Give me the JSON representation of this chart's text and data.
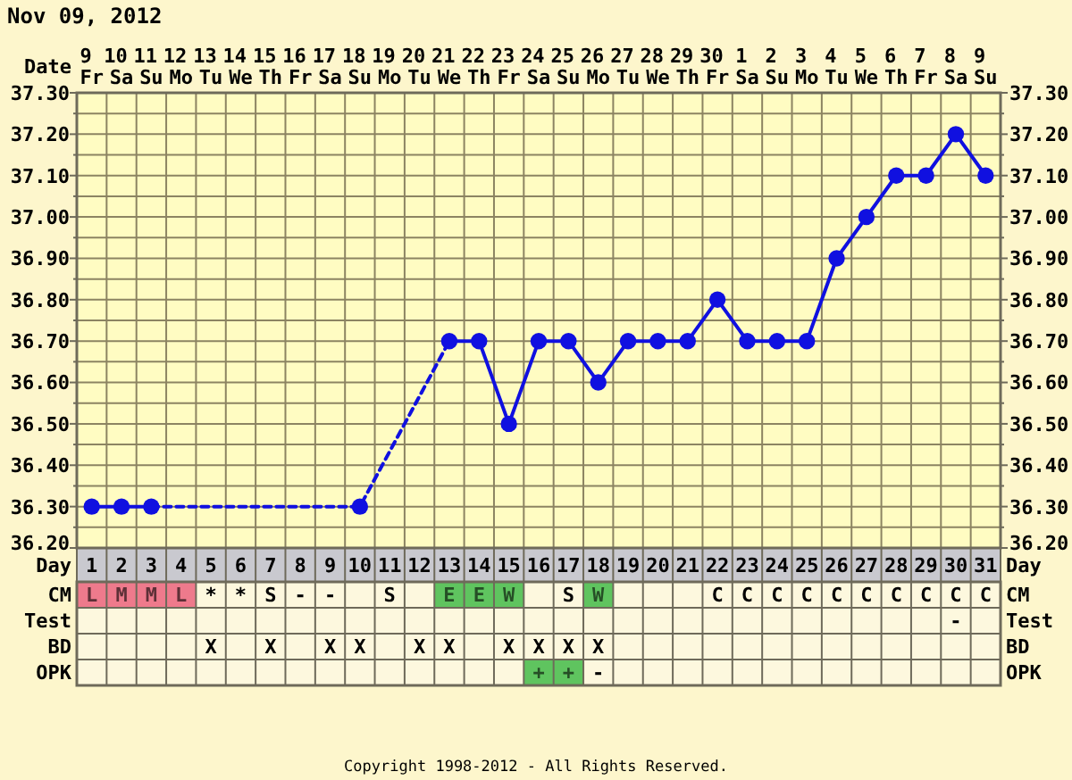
{
  "chart_data": [
    {
      "type": "line",
      "title": "Nov 09, 2012",
      "xlabel": "Date",
      "x2label": "Day",
      "categories": [
        "9 Fr",
        "10 Sa",
        "11 Su",
        "12 Mo",
        "13 Tu",
        "14 We",
        "15 Th",
        "16 Fr",
        "17 Sa",
        "18 Su",
        "19 Mo",
        "20 Tu",
        "21 We",
        "22 Th",
        "23 Fr",
        "24 Sa",
        "25 Su",
        "26 Mo",
        "27 Tu",
        "28 We",
        "29 Th",
        "30 Fr",
        "1 Sa",
        "2 Su",
        "3 Mo",
        "4 Tu",
        "5 We",
        "6 Th",
        "7 Fr",
        "8 Sa",
        "9 Su"
      ],
      "x2lim": [
        0.5,
        31.5
      ],
      "x2ticks": [
        1,
        2,
        3,
        4,
        5,
        6,
        7,
        8,
        9,
        10,
        11,
        12,
        13,
        14,
        15,
        16,
        17,
        18,
        19,
        20,
        21,
        22,
        23,
        24,
        25,
        26,
        27,
        28,
        29,
        30,
        31
      ],
      "ylim": [
        36.2,
        37.3
      ],
      "yticks": [
        {
          "value": 36.2,
          "label": "36.20"
        },
        {
          "value": 36.25,
          "label": null
        },
        {
          "value": 36.3,
          "label": "36.30"
        },
        {
          "value": 36.35,
          "label": null
        },
        {
          "value": 36.4,
          "label": "36.40"
        },
        {
          "value": 36.45,
          "label": null
        },
        {
          "value": 36.5,
          "label": "36.50"
        },
        {
          "value": 36.55,
          "label": null
        },
        {
          "value": 36.6,
          "label": "36.60"
        },
        {
          "value": 36.65,
          "label": null
        },
        {
          "value": 36.7,
          "label": "36.70"
        },
        {
          "value": 36.75,
          "label": null
        },
        {
          "value": 36.8,
          "label": "36.80"
        },
        {
          "value": 36.85,
          "label": null
        },
        {
          "value": 36.9,
          "label": "36.90"
        },
        {
          "value": 36.95,
          "label": null
        },
        {
          "value": 37.0,
          "label": "37.00"
        },
        {
          "value": 37.05,
          "label": null
        },
        {
          "value": 37.1,
          "label": "37.10"
        },
        {
          "value": 37.15,
          "label": null
        },
        {
          "value": 37.2,
          "label": "37.20"
        },
        {
          "value": 37.25,
          "label": null
        },
        {
          "value": 37.3,
          "label": "37.30"
        }
      ],
      "y2lim": [
        36.2,
        37.3
      ],
      "y2ticks": [
        {
          "value": 36.2,
          "label": "36.20"
        },
        {
          "value": 36.25,
          "label": null
        },
        {
          "value": 36.3,
          "label": "36.30"
        },
        {
          "value": 36.35,
          "label": null
        },
        {
          "value": 36.4,
          "label": "36.40"
        },
        {
          "value": 36.45,
          "label": null
        },
        {
          "value": 36.5,
          "label": "36.50"
        },
        {
          "value": 36.55,
          "label": null
        },
        {
          "value": 36.6,
          "label": "36.60"
        },
        {
          "value": 36.65,
          "label": null
        },
        {
          "value": 36.7,
          "label": "36.70"
        },
        {
          "value": 36.75,
          "label": null
        },
        {
          "value": 36.8,
          "label": "36.80"
        },
        {
          "value": 36.85,
          "label": null
        },
        {
          "value": 36.9,
          "label": "36.90"
        },
        {
          "value": 36.95,
          "label": null
        },
        {
          "value": 37.0,
          "label": "37.00"
        },
        {
          "value": 37.05,
          "label": null
        },
        {
          "value": 37.1,
          "label": "37.10"
        },
        {
          "value": 37.15,
          "label": null
        },
        {
          "value": 37.2,
          "label": "37.20"
        },
        {
          "value": 37.25,
          "label": null
        },
        {
          "value": 37.3,
          "label": "37.30"
        }
      ],
      "grid": true,
      "series": [
        {
          "color": "#1010e0",
          "x": [
            "11 Su",
            "18 Su",
            "21 We"
          ],
          "values": [
            36.3,
            36.3,
            36.7
          ],
          "line_style": "dashed",
          "marker": "none"
        },
        {
          "color": "#1010e0",
          "values": [
            36.3,
            36.3,
            36.3,
            null,
            null,
            null,
            null,
            null,
            null,
            36.3,
            null,
            null,
            36.7,
            36.7,
            36.5,
            36.7,
            36.7,
            36.6,
            36.7,
            36.7,
            36.7,
            36.8,
            36.7,
            36.7,
            36.7,
            36.9,
            37.0,
            37.1,
            37.1,
            37.2,
            37.1
          ],
          "line_style": "solid",
          "marker": "circle"
        }
      ],
      "annotations": [
        "Copyright 1998-2012 - All Rights Reserved."
      ]
    },
    {
      "type": "other",
      "y_categories": [
        "CM",
        "Test",
        "BD",
        "OPK"
      ],
      "y2_categories": [
        "CM",
        "Test",
        "BD",
        "OPK"
      ],
      "cell_labels": [
        [
          "L",
          "M",
          "M",
          "L",
          "*",
          "*",
          "S",
          "-",
          "-",
          null,
          "S",
          null,
          "E",
          "E",
          "W",
          null,
          "S",
          "W",
          null,
          null,
          null,
          "C",
          "C",
          "C",
          "C",
          "C",
          "C",
          "C",
          "C",
          "C",
          "C"
        ],
        [
          null,
          null,
          null,
          null,
          null,
          null,
          null,
          null,
          null,
          null,
          null,
          null,
          null,
          null,
          null,
          null,
          null,
          null,
          null,
          null,
          null,
          null,
          null,
          null,
          null,
          null,
          null,
          null,
          null,
          "-",
          null
        ],
        [
          null,
          null,
          null,
          null,
          "X",
          null,
          "X",
          null,
          "X",
          "X",
          null,
          "X",
          "X",
          null,
          "X",
          "X",
          "X",
          "X",
          null,
          null,
          null,
          null,
          null,
          null,
          null,
          null,
          null,
          null,
          null,
          null,
          null
        ],
        [
          null,
          null,
          null,
          null,
          null,
          null,
          null,
          null,
          null,
          null,
          null,
          null,
          null,
          null,
          null,
          "+",
          "+",
          "-",
          null,
          null,
          null,
          null,
          null,
          null,
          null,
          null,
          null,
          null,
          null,
          null,
          null
        ]
      ],
      "colors": [
        [
          "#ee7a8c",
          "#ee7a8c",
          "#ee7a8c",
          "#ee7a8c",
          null,
          null,
          null,
          null,
          null,
          null,
          null,
          null,
          "#5fc45f",
          "#5fc45f",
          "#5fc45f",
          null,
          null,
          "#5fc45f",
          null,
          null,
          null,
          null,
          null,
          null,
          null,
          null,
          null,
          null,
          null,
          null,
          null
        ],
        [
          null,
          null,
          null,
          null,
          null,
          null,
          null,
          null,
          null,
          null,
          null,
          null,
          null,
          null,
          null,
          null,
          null,
          null,
          null,
          null,
          null,
          null,
          null,
          null,
          null,
          null,
          null,
          null,
          null,
          null,
          null
        ],
        [
          null,
          null,
          null,
          null,
          null,
          null,
          null,
          null,
          null,
          null,
          null,
          null,
          null,
          null,
          null,
          null,
          null,
          null,
          null,
          null,
          null,
          null,
          null,
          null,
          null,
          null,
          null,
          null,
          null,
          null,
          null
        ],
        [
          null,
          null,
          null,
          null,
          null,
          null,
          null,
          null,
          null,
          null,
          null,
          null,
          null,
          null,
          null,
          "#5fc45f",
          "#5fc45f",
          null,
          null,
          null,
          null,
          null,
          null,
          null,
          null,
          null,
          null,
          null,
          null,
          null,
          null
        ]
      ]
    }
  ]
}
